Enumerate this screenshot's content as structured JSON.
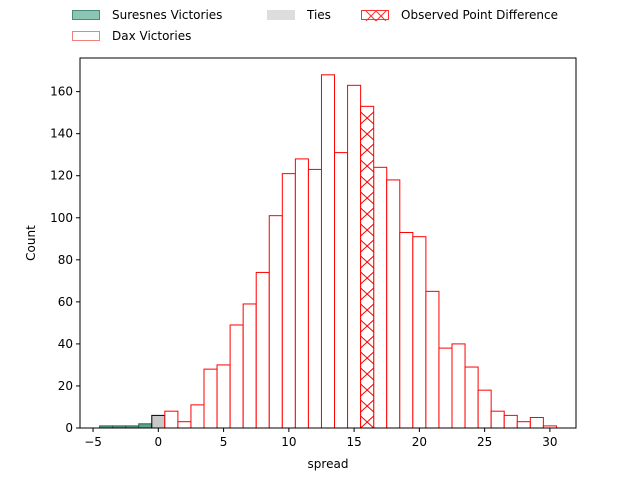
{
  "chart_data": {
    "type": "bar",
    "xlabel": "spread",
    "ylabel": "Count",
    "xlim": [
      -6,
      32
    ],
    "ylim": [
      0,
      176
    ],
    "xticks": [
      -5,
      0,
      5,
      10,
      15,
      20,
      25,
      30
    ],
    "yticks": [
      0,
      20,
      40,
      60,
      80,
      100,
      120,
      140,
      160
    ],
    "bin_width": 1,
    "legend": {
      "placement": "top",
      "entries": [
        "Suresnes Victories",
        "Dax Victories",
        "Ties",
        "Observed Point Difference"
      ]
    },
    "series": [
      {
        "name": "Suresnes Victories",
        "color": "#5aa58e",
        "edge": "#2f5f52",
        "bin_starts": [
          -4.5,
          -3.5,
          -2.5,
          -1.5
        ],
        "values": [
          1,
          1,
          1,
          2
        ]
      },
      {
        "name": "Ties",
        "color": "#c8c8c8",
        "edge": "#000000",
        "bin_starts": [
          -0.5
        ],
        "values": [
          6
        ]
      },
      {
        "name": "Dax Victories",
        "color": "#ffffff",
        "edge": "#ff0000",
        "bin_starts": [
          0.5,
          1.5,
          2.5,
          3.5,
          4.5,
          5.5,
          6.5,
          7.5,
          8.5,
          9.5,
          10.5,
          11.5,
          12.5,
          13.5,
          14.5,
          16.5,
          17.5,
          18.5,
          19.5,
          20.5,
          21.5,
          22.5,
          23.5,
          24.5,
          25.5,
          26.5,
          27.5,
          28.5,
          29.5
        ],
        "values": [
          8,
          3,
          11,
          28,
          30,
          49,
          59,
          74,
          101,
          121,
          128,
          123,
          168,
          131,
          163,
          124,
          118,
          93,
          91,
          65,
          38,
          40,
          29,
          18,
          8,
          6,
          3,
          5,
          1
        ]
      },
      {
        "name": "Observed Point Difference",
        "color": "#ffffff",
        "edge": "#ff0000",
        "hatch": "x",
        "bin_starts": [
          15.5
        ],
        "values": [
          153
        ]
      }
    ]
  }
}
